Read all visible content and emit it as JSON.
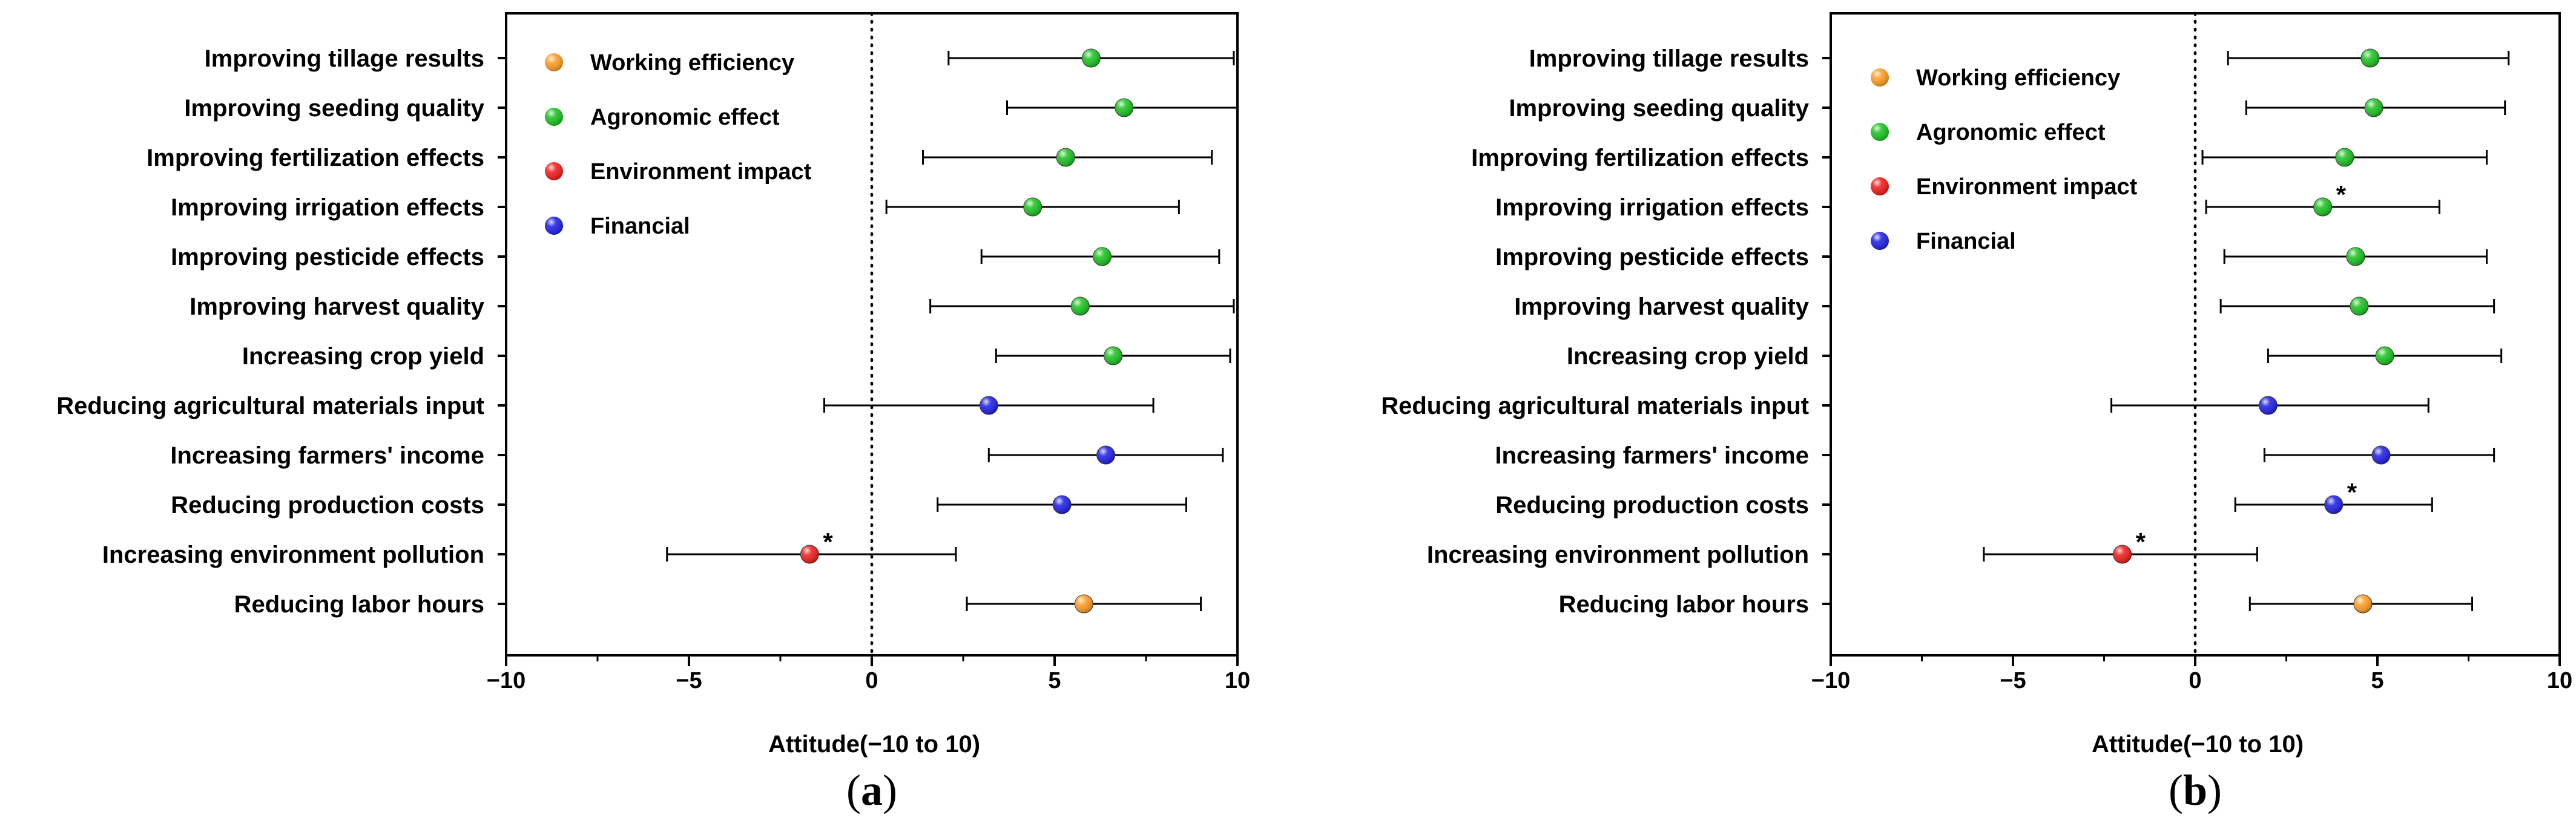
{
  "colors": {
    "Working efficiency": "#ff9a1f",
    "Agronomic effect": "#16c21b",
    "Environment impact": "#f01717",
    "Financial": "#1a1ae6",
    "axis": "#000000"
  },
  "legend_order": [
    "Working efficiency",
    "Agronomic effect",
    "Environment impact",
    "Financial"
  ],
  "chart_data": [
    {
      "panel": "(a)",
      "panel_letter": "a",
      "type": "scatter",
      "title": "",
      "xlabel": "Attitude(−10 to 10)",
      "ylabel": "",
      "xlim": [
        -10,
        10
      ],
      "xticks": [
        -10,
        -5,
        0,
        5,
        10
      ],
      "xtick_labels": [
        "−10",
        "−5",
        "0",
        "5",
        "10"
      ],
      "reference_line_x": 0,
      "legend_position": "top-left",
      "grid": false,
      "items": [
        {
          "label": "Improving tillage results",
          "group": "Agronomic effect",
          "mean": 6.0,
          "low": 2.1,
          "high": 9.9,
          "sig": ""
        },
        {
          "label": "Improving seeding quality",
          "group": "Agronomic effect",
          "mean": 6.9,
          "low": 3.7,
          "high": 10.0,
          "sig": ""
        },
        {
          "label": "Improving fertilization effects",
          "group": "Agronomic effect",
          "mean": 5.3,
          "low": 1.4,
          "high": 9.3,
          "sig": ""
        },
        {
          "label": "Improving irrigation effects",
          "group": "Agronomic effect",
          "mean": 4.4,
          "low": 0.4,
          "high": 8.4,
          "sig": ""
        },
        {
          "label": "Improving pesticide effects",
          "group": "Agronomic effect",
          "mean": 6.3,
          "low": 3.0,
          "high": 9.5,
          "sig": ""
        },
        {
          "label": "Improving harvest quality",
          "group": "Agronomic effect",
          "mean": 5.7,
          "low": 1.6,
          "high": 9.9,
          "sig": ""
        },
        {
          "label": "Increasing crop yield",
          "group": "Agronomic effect",
          "mean": 6.6,
          "low": 3.4,
          "high": 9.8,
          "sig": ""
        },
        {
          "label": "Reducing agricultural materials input",
          "group": "Financial",
          "mean": 3.2,
          "low": -1.3,
          "high": 7.7,
          "sig": ""
        },
        {
          "label": "Increasing farmers' income",
          "group": "Financial",
          "mean": 6.4,
          "low": 3.2,
          "high": 9.6,
          "sig": ""
        },
        {
          "label": "Reducing production costs",
          "group": "Financial",
          "mean": 5.2,
          "low": 1.8,
          "high": 8.6,
          "sig": ""
        },
        {
          "label": "Increasing environment pollution",
          "group": "Environment impact",
          "mean": -1.7,
          "low": -5.6,
          "high": 2.3,
          "sig": "*"
        },
        {
          "label": "Reducing labor hours",
          "group": "Working efficiency",
          "mean": 5.8,
          "low": 2.6,
          "high": 9.0,
          "sig": ""
        }
      ]
    },
    {
      "panel": "(b)",
      "panel_letter": "b",
      "type": "scatter",
      "title": "",
      "xlabel": "Attitude(−10 to 10)",
      "ylabel": "",
      "xlim": [
        -10,
        10
      ],
      "xticks": [
        -10,
        -5,
        0,
        5,
        10
      ],
      "xtick_labels": [
        "−10",
        "−5",
        "0",
        "5",
        "10"
      ],
      "reference_line_x": 0,
      "legend_position": "top-left",
      "grid": false,
      "items": [
        {
          "label": "Improving tillage results",
          "group": "Agronomic effect",
          "mean": 4.8,
          "low": 0.9,
          "high": 8.6,
          "sig": ""
        },
        {
          "label": "Improving seeding quality",
          "group": "Agronomic effect",
          "mean": 4.9,
          "low": 1.4,
          "high": 8.5,
          "sig": ""
        },
        {
          "label": "Improving fertilization effects",
          "group": "Agronomic effect",
          "mean": 4.1,
          "low": 0.2,
          "high": 8.0,
          "sig": ""
        },
        {
          "label": "Improving irrigation effects",
          "group": "Agronomic effect",
          "mean": 3.5,
          "low": 0.3,
          "high": 6.7,
          "sig": "*"
        },
        {
          "label": "Improving pesticide effects",
          "group": "Agronomic effect",
          "mean": 4.4,
          "low": 0.8,
          "high": 8.0,
          "sig": ""
        },
        {
          "label": "Improving harvest quality",
          "group": "Agronomic effect",
          "mean": 4.5,
          "low": 0.7,
          "high": 8.2,
          "sig": ""
        },
        {
          "label": "Increasing crop yield",
          "group": "Agronomic effect",
          "mean": 5.2,
          "low": 2.0,
          "high": 8.4,
          "sig": ""
        },
        {
          "label": "Reducing agricultural materials input",
          "group": "Financial",
          "mean": 2.0,
          "low": -2.3,
          "high": 6.4,
          "sig": ""
        },
        {
          "label": "Increasing farmers' income",
          "group": "Financial",
          "mean": 5.1,
          "low": 1.9,
          "high": 8.2,
          "sig": ""
        },
        {
          "label": "Reducing production costs",
          "group": "Financial",
          "mean": 3.8,
          "low": 1.1,
          "high": 6.5,
          "sig": "*"
        },
        {
          "label": "Increasing environment pollution",
          "group": "Environment impact",
          "mean": -2.0,
          "low": -5.8,
          "high": 1.7,
          "sig": "*"
        },
        {
          "label": "Reducing labor hours",
          "group": "Working efficiency",
          "mean": 4.6,
          "low": 1.5,
          "high": 7.6,
          "sig": ""
        }
      ]
    }
  ]
}
